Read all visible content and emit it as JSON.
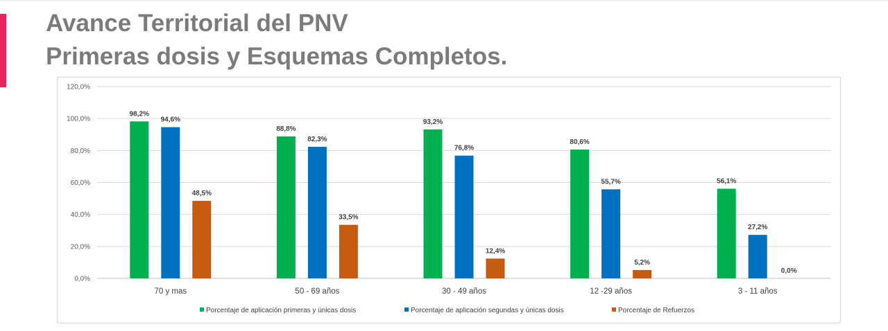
{
  "slide": {
    "title_line1": "Avance Territorial del PNV",
    "title_line2": "Primeras dosis y Esquemas Completos.",
    "accent_color": "#e8265e"
  },
  "chart_data": {
    "type": "bar",
    "title": "",
    "xlabel": "",
    "ylabel": "",
    "categories": [
      "70  y mas",
      "50 - 69 años",
      "30 - 49 años",
      "12 -29 años",
      "3 - 11 años"
    ],
    "series": [
      {
        "name": "Porcentaje de aplicación primeras y únicas dosis",
        "color": "#00b050",
        "values": [
          98.2,
          88.8,
          93.2,
          80.6,
          56.1
        ]
      },
      {
        "name": "Porcentaje de aplicación segundas y únicas dosis",
        "color": "#0070c0",
        "values": [
          94.6,
          82.3,
          76.8,
          55.7,
          27.2
        ]
      },
      {
        "name": "Porcentaje de Refuerzos",
        "color": "#c55a11",
        "values": [
          48.5,
          33.5,
          12.4,
          5.2,
          0.0
        ]
      }
    ],
    "ylim": [
      0,
      120
    ],
    "yticks": [
      0,
      20,
      40,
      60,
      80,
      100,
      120
    ],
    "ytick_labels": [
      "0,0%",
      "20,0%",
      "40,0%",
      "60,0%",
      "80,0%",
      "100,0%",
      "120,0%"
    ],
    "data_labels": [
      [
        "98,2%",
        "88,8%",
        "93,2%",
        "80,6%",
        "56,1%"
      ],
      [
        "94,6%",
        "82,3%",
        "76,8%",
        "55,7%",
        "27,2%"
      ],
      [
        "48,5%",
        "33,5%",
        "12,4%",
        "5,2%",
        "0,0%"
      ]
    ],
    "grid": true,
    "legend_position": "bottom"
  }
}
